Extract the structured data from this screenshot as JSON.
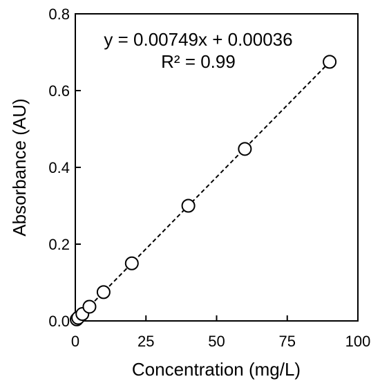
{
  "chart_data": {
    "type": "scatter",
    "xlabel": "Concentration (mg/L)",
    "ylabel": "Absorbance (AU)",
    "xlim": [
      0,
      100
    ],
    "ylim": [
      0,
      0.8
    ],
    "x_ticks": [
      "0",
      "25",
      "50",
      "75",
      "100"
    ],
    "y_ticks": [
      "0.0",
      "0.2",
      "0.4",
      "0.6",
      "0.8"
    ],
    "grid": false,
    "legend": "none",
    "series": [
      {
        "marker": "open-circle",
        "points": [
          {
            "x": 0.5,
            "y": 0.004
          },
          {
            "x": 1,
            "y": 0.008
          },
          {
            "x": 2.5,
            "y": 0.018
          },
          {
            "x": 5,
            "y": 0.037
          },
          {
            "x": 10,
            "y": 0.075
          },
          {
            "x": 20,
            "y": 0.15
          },
          {
            "x": 40,
            "y": 0.3
          },
          {
            "x": 60,
            "y": 0.448
          },
          {
            "x": 90,
            "y": 0.675
          }
        ]
      }
    ],
    "trendline": {
      "style": "dashed",
      "slope": 0.00749,
      "intercept": 0.00036,
      "x_range": [
        0,
        90
      ]
    },
    "annotations": {
      "equation": "y = 0.00749x + 0.00036",
      "r_squared": "R² = 0.99"
    },
    "colors": {
      "line": "#000000",
      "marker_edge": "#000000",
      "marker_fill": "#ffffff",
      "background": "#ffffff"
    }
  }
}
